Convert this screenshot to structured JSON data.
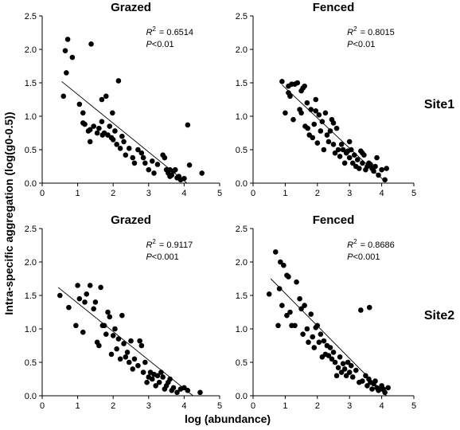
{
  "figure": {
    "ylabel": "Intra-specific aggregation (log(g0-0.5))",
    "xlabel": "log (abundance)",
    "site_labels": [
      "Site1",
      "Site2"
    ]
  },
  "chart_data": [
    {
      "type": "scatter",
      "title": "Grazed",
      "site": "Site1",
      "r2_label": "R",
      "r2_value": "= 0.6514",
      "p_label": "P",
      "p_value": "<0.01",
      "xlim": [
        0,
        5
      ],
      "ylim": [
        0,
        2.5
      ],
      "xticks": [
        "0",
        "1",
        "2",
        "3",
        "4",
        "5"
      ],
      "yticks": [
        "0.0",
        "0.5",
        "1.0",
        "1.5",
        "2.0",
        "2.5"
      ],
      "trend": {
        "x": [
          0.55,
          4.08
        ],
        "y": [
          1.52,
          0.0
        ]
      },
      "x": [
        0.6,
        0.68,
        0.72,
        0.85,
        0.65,
        1.05,
        1.15,
        1.38,
        1.15,
        1.2,
        1.3,
        1.35,
        1.45,
        1.55,
        1.6,
        1.68,
        1.7,
        1.75,
        1.8,
        1.85,
        1.9,
        1.95,
        1.98,
        2.0,
        2.05,
        2.1,
        2.15,
        2.2,
        2.25,
        2.3,
        2.35,
        2.45,
        2.55,
        2.6,
        2.7,
        2.8,
        2.85,
        2.9,
        3.0,
        3.1,
        3.15,
        3.25,
        3.4,
        3.45,
        3.5,
        3.55,
        3.6,
        3.65,
        3.7,
        3.75,
        3.8,
        3.85,
        3.9,
        4.0,
        4.1,
        4.15,
        4.5,
        1.68,
        1.35,
        3.6
      ],
      "y": [
        1.3,
        1.65,
        2.15,
        1.88,
        1.98,
        1.18,
        1.05,
        2.08,
        0.9,
        0.88,
        0.78,
        0.62,
        0.85,
        0.75,
        0.82,
        1.25,
        0.72,
        0.75,
        1.3,
        0.72,
        0.85,
        0.68,
        1.05,
        0.65,
        0.78,
        0.58,
        1.53,
        0.52,
        0.7,
        0.62,
        0.42,
        0.52,
        0.38,
        0.3,
        0.5,
        0.45,
        0.38,
        0.3,
        0.2,
        0.33,
        0.15,
        0.28,
        0.42,
        0.38,
        0.2,
        0.15,
        0.1,
        0.12,
        0.18,
        0.2,
        0.08,
        0.1,
        0.05,
        0.07,
        0.87,
        0.27,
        0.15,
        0.92,
        0.8,
        0.2
      ]
    },
    {
      "type": "scatter",
      "title": "Fenced",
      "site": "Site1",
      "r2_label": "R",
      "r2_value": "= 0.8015",
      "p_label": "P",
      "p_value": "<0.01",
      "xlim": [
        0,
        5
      ],
      "ylim": [
        0,
        2.5
      ],
      "xticks": [
        "0",
        "1",
        "2",
        "3",
        "4",
        "5"
      ],
      "yticks": [
        "0.0",
        "0.5",
        "1.0",
        "1.5",
        "2.0",
        "2.5"
      ],
      "trend": {
        "x": [
          0.9,
          4.05
        ],
        "y": [
          1.47,
          0.05
        ]
      },
      "x": [
        0.9,
        1.0,
        1.1,
        1.15,
        1.2,
        1.25,
        1.3,
        1.38,
        1.45,
        1.5,
        1.55,
        1.6,
        1.62,
        1.68,
        1.7,
        1.75,
        1.8,
        1.85,
        1.9,
        1.95,
        2.0,
        2.05,
        2.1,
        2.15,
        2.2,
        2.25,
        2.3,
        2.35,
        2.4,
        2.45,
        2.5,
        2.55,
        2.6,
        2.65,
        2.7,
        2.75,
        2.8,
        2.85,
        2.9,
        2.95,
        3.0,
        3.05,
        3.1,
        3.15,
        3.2,
        3.25,
        3.3,
        3.35,
        3.4,
        3.45,
        3.5,
        3.55,
        3.6,
        3.65,
        3.7,
        3.75,
        3.8,
        3.85,
        3.9,
        4.0,
        4.1,
        4.15,
        1.1,
        1.5,
        1.95,
        2.5,
        3.0,
        3.4
      ],
      "y": [
        1.52,
        1.05,
        1.45,
        1.3,
        1.48,
        0.95,
        1.48,
        1.5,
        1.1,
        1.05,
        1.42,
        1.45,
        0.85,
        1.2,
        0.82,
        0.72,
        1.1,
        0.68,
        0.88,
        1.25,
        0.6,
        1.02,
        0.78,
        0.92,
        0.5,
        1.05,
        0.72,
        0.62,
        0.78,
        0.95,
        0.58,
        0.45,
        0.82,
        0.5,
        0.4,
        0.58,
        0.5,
        0.3,
        0.45,
        0.48,
        0.38,
        0.5,
        0.3,
        0.42,
        0.25,
        0.35,
        0.22,
        0.48,
        0.3,
        0.42,
        0.2,
        0.25,
        0.3,
        0.28,
        0.22,
        0.18,
        0.25,
        0.38,
        0.12,
        0.2,
        0.05,
        0.22,
        1.35,
        1.38,
        1.08,
        0.9,
        0.62,
        0.45
      ]
    },
    {
      "type": "scatter",
      "title": "Grazed",
      "site": "Site2",
      "r2_label": "R",
      "r2_value": "= 0.9117",
      "p_label": "P",
      "p_value": "<0.001",
      "xlim": [
        0,
        5
      ],
      "ylim": [
        0,
        2.5
      ],
      "xticks": [
        "0",
        "1",
        "2",
        "3",
        "4",
        "5"
      ],
      "yticks": [
        "0.0",
        "0.5",
        "1.0",
        "1.5",
        "2.0",
        "2.5"
      ],
      "trend": {
        "x": [
          0.45,
          4.25
        ],
        "y": [
          1.62,
          0.0
        ]
      },
      "x": [
        0.5,
        0.75,
        0.95,
        1.05,
        1.15,
        1.25,
        1.35,
        1.45,
        1.5,
        1.55,
        1.6,
        1.65,
        1.7,
        1.75,
        1.8,
        1.85,
        1.9,
        1.95,
        2.0,
        2.05,
        2.1,
        2.15,
        2.2,
        2.25,
        2.3,
        2.35,
        2.4,
        2.45,
        2.5,
        2.55,
        2.6,
        2.7,
        2.75,
        2.8,
        2.85,
        2.9,
        2.95,
        3.0,
        3.05,
        3.1,
        3.15,
        3.2,
        3.25,
        3.3,
        3.35,
        3.4,
        3.45,
        3.5,
        3.55,
        3.6,
        3.65,
        3.7,
        3.8,
        3.9,
        4.0,
        4.1,
        4.45,
        1.0,
        1.2
      ],
      "y": [
        1.5,
        1.32,
        1.05,
        1.45,
        0.95,
        1.52,
        1.65,
        1.3,
        1.4,
        0.8,
        0.75,
        1.62,
        1.05,
        1.05,
        0.92,
        1.25,
        1.18,
        0.62,
        0.9,
        1.0,
        0.7,
        0.85,
        0.55,
        1.2,
        0.78,
        0.58,
        0.65,
        0.5,
        0.82,
        0.4,
        0.55,
        0.45,
        0.82,
        0.75,
        0.35,
        0.5,
        0.2,
        0.28,
        0.35,
        0.25,
        0.32,
        0.15,
        0.3,
        0.2,
        0.35,
        0.28,
        0.1,
        0.15,
        0.2,
        0.25,
        0.08,
        0.12,
        0.05,
        0.1,
        0.12,
        0.08,
        0.05,
        1.65,
        1.4
      ]
    },
    {
      "type": "scatter",
      "title": "Fenced",
      "site": "Site2",
      "r2_label": "R",
      "r2_value": "= 0.8686",
      "p_label": "P",
      "p_value": "<0.001",
      "xlim": [
        0,
        5
      ],
      "ylim": [
        0,
        2.5
      ],
      "xticks": [
        "0",
        "1",
        "2",
        "3",
        "4",
        "5"
      ],
      "yticks": [
        "0.0",
        "0.5",
        "1.0",
        "1.5",
        "2.0",
        "2.5"
      ],
      "trend": {
        "x": [
          0.55,
          4.15
        ],
        "y": [
          1.75,
          0.0
        ]
      },
      "x": [
        0.5,
        0.7,
        0.78,
        0.82,
        0.9,
        0.95,
        1.05,
        1.1,
        1.15,
        1.2,
        1.3,
        1.35,
        1.45,
        1.5,
        1.55,
        1.6,
        1.68,
        1.72,
        1.8,
        1.85,
        1.9,
        1.95,
        2.0,
        2.05,
        2.1,
        2.15,
        2.2,
        2.25,
        2.3,
        2.35,
        2.4,
        2.45,
        2.5,
        2.55,
        2.6,
        2.65,
        2.7,
        2.75,
        2.8,
        2.85,
        2.9,
        2.95,
        3.0,
        3.05,
        3.1,
        3.2,
        3.3,
        3.4,
        3.5,
        3.55,
        3.6,
        3.65,
        3.7,
        3.75,
        3.8,
        3.85,
        3.9,
        3.95,
        4.0,
        4.05,
        4.1,
        4.2,
        3.35,
        3.62,
        0.85,
        1.05
      ],
      "y": [
        1.52,
        2.15,
        1.05,
        1.6,
        1.35,
        1.95,
        1.2,
        1.78,
        1.25,
        1.05,
        1.05,
        1.7,
        1.45,
        1.3,
        0.92,
        1.35,
        1.0,
        0.8,
        1.22,
        0.88,
        0.72,
        1.02,
        1.05,
        0.8,
        0.92,
        0.58,
        0.82,
        0.62,
        0.75,
        0.6,
        0.72,
        0.55,
        0.65,
        0.5,
        0.3,
        0.42,
        0.58,
        0.35,
        0.48,
        0.4,
        0.3,
        0.5,
        0.35,
        0.45,
        0.28,
        0.38,
        0.2,
        0.22,
        0.3,
        0.15,
        0.25,
        0.2,
        0.1,
        0.18,
        0.22,
        0.12,
        0.08,
        0.1,
        0.15,
        0.1,
        0.05,
        0.12,
        1.28,
        1.32,
        2.0,
        1.8
      ]
    }
  ]
}
